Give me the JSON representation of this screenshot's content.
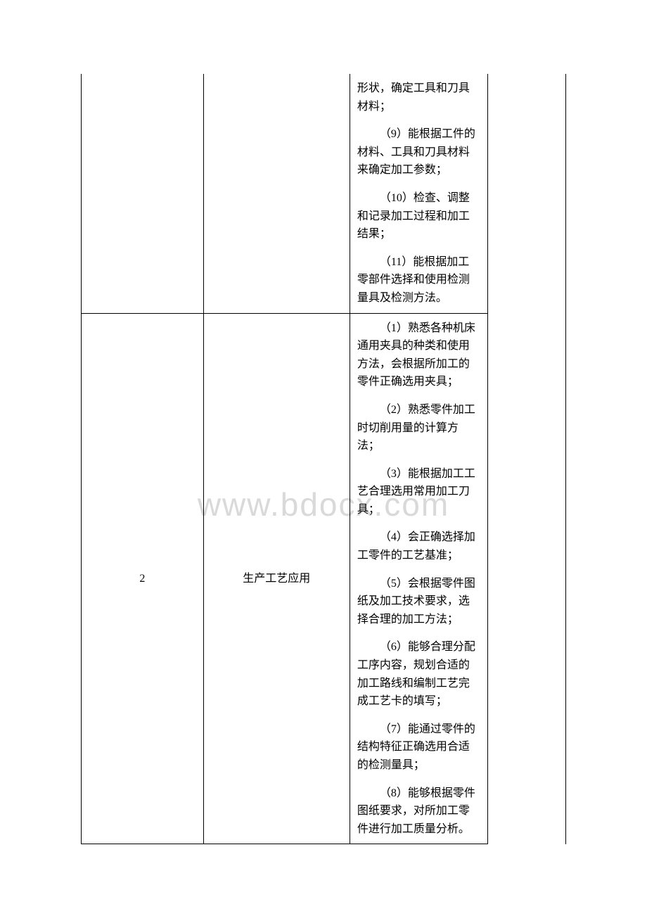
{
  "watermark": "www.bdocx.com",
  "table": {
    "border_color": "#000000",
    "text_color": "#000000",
    "font_size": 16,
    "rows": [
      {
        "col1": "",
        "col2": "",
        "col3_items": [
          "形状，确定工具和刀具材料；",
          "（9）能根据工件的材料、工具和刀具材料来确定加工参数；",
          "（10）检查、调整和记录加工过程和加工结果；",
          "（11）能根据加工零部件选择和使用检测量具及检测方法。"
        ],
        "col4": ""
      },
      {
        "col1": "2",
        "col2": "生产工艺应用",
        "col3_items": [
          "（1）熟悉各种机床通用夹具的种类和使用方法，会根据所加工的零件正确选用夹具；",
          "（2）熟悉零件加工时切削用量的计算方法；",
          "（3）能根据加工工艺合理选用常用加工刀具；",
          "（4）会正确选择加工零件的工艺基准；",
          "（5）会根据零件图纸及加工技术要求，选择合理的加工方法；",
          "（6）能够合理分配工序内容，规划合适的加工路线和编制工艺完成工艺卡的填写；",
          "（7）能通过零件的结构特征正确选用合适的检测量具；",
          "（8）能够根据零件图纸要求，对所加工零件进行加工质量分析。"
        ],
        "col4": ""
      }
    ]
  }
}
